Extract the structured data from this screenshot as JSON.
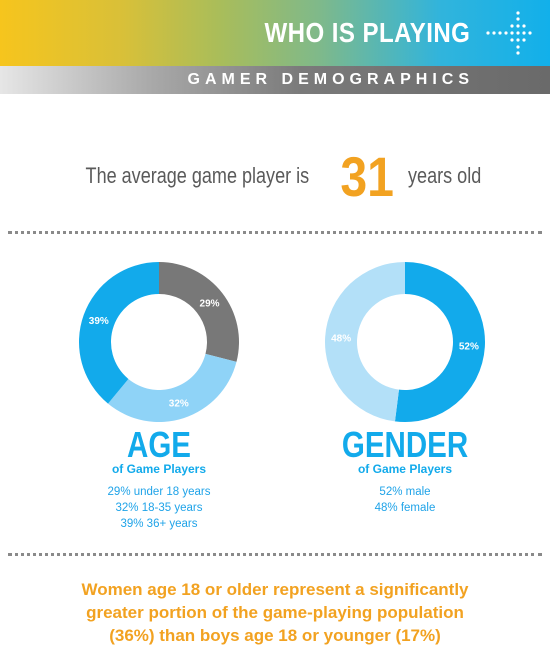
{
  "header": {
    "title": "WHO IS PLAYING",
    "subtitle": "GAMER DEMOGRAPHICS"
  },
  "headline": {
    "prefix": "The average game player is",
    "age": "31",
    "suffix": "years old"
  },
  "colors": {
    "orange": "#f2a221",
    "blue": "#12aaeb",
    "light_blue": "#8fd3f7",
    "pale_blue": "#b3e0f8",
    "gray": "#787878"
  },
  "chart_data": [
    {
      "type": "pie",
      "title": "AGE",
      "subtitle": "of Game Players",
      "slices": [
        {
          "label": "29%",
          "value": 29,
          "color": "#787878"
        },
        {
          "label": "32%",
          "value": 32,
          "color": "#8fd3f7"
        },
        {
          "label": "39%",
          "value": 39,
          "color": "#12aaeb"
        }
      ],
      "legend": [
        "29% under 18 years",
        "32% 18-35 years",
        "39% 36+ years"
      ]
    },
    {
      "type": "pie",
      "title": "GENDER",
      "subtitle": "of Game Players",
      "slices": [
        {
          "label": "52%",
          "value": 52,
          "color": "#12aaeb"
        },
        {
          "label": "48%",
          "value": 48,
          "color": "#b3e0f8"
        }
      ],
      "legend": [
        "52% male",
        "48% female"
      ]
    }
  ],
  "footer": {
    "lines": [
      "Women age 18 or older represent a significantly",
      "greater portion of the game-playing population",
      "(36%) than boys age 18 or younger (17%)"
    ]
  }
}
